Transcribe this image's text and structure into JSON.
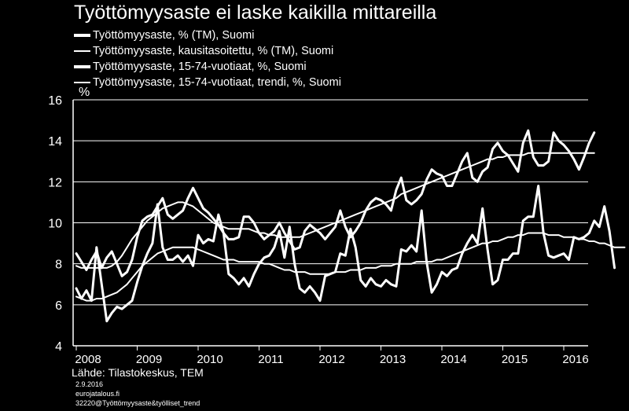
{
  "title": "Työttömyysaste ei laske kaikilla mittareilla",
  "legend": [
    "Työttömyysaste, % (TM), Suomi",
    "Työttömyysaste, kausitasoitettu, % (TM), Suomi",
    "Työttömyysaste, 15-74-vuotiaat, %, Suomi",
    "Työttömyysaste, 15-74-vuotiaat, trendi, %, Suomi"
  ],
  "footer": {
    "source": "Lähde: Tilastokeskus, TEM",
    "date": "2.9.2016",
    "site": "eurojatalous.fi",
    "code": "32220@Työttömyysaste&työlliset_trend"
  },
  "chart_data": {
    "type": "line",
    "xlabel": "",
    "ylabel": "%",
    "ylim": [
      4,
      16
    ],
    "yticks": [
      4,
      6,
      8,
      10,
      12,
      14,
      16
    ],
    "xtick_labels": [
      "2008",
      "2009",
      "2010",
      "2011",
      "2012",
      "2013",
      "2014",
      "2015",
      "2016"
    ],
    "grid": true,
    "legend_position": "top-left",
    "colors": {
      "background": "#000000",
      "lines": "#ffffff",
      "grid": "#ffffff"
    },
    "series": [
      {
        "name": "Työttömyysaste, % (TM), Suomi",
        "start": "2008-01",
        "line_width": 3,
        "values": [
          6.8,
          6.3,
          6.7,
          6.2,
          8.8,
          7.0,
          5.2,
          5.6,
          5.9,
          5.8,
          6.0,
          6.2,
          7.1,
          7.9,
          8.5,
          9.0,
          10.9,
          8.8,
          8.2,
          8.2,
          8.4,
          8.1,
          8.4,
          7.9,
          9.4,
          9.0,
          9.2,
          9.1,
          10.4,
          9.5,
          7.5,
          7.3,
          7.0,
          7.3,
          6.9,
          7.5,
          8.0,
          8.3,
          8.4,
          8.8,
          9.6,
          8.3,
          9.8,
          8.0,
          6.8,
          6.6,
          6.9,
          6.6,
          6.2,
          7.4,
          7.5,
          7.6,
          8.5,
          8.4,
          9.7,
          8.8,
          7.2,
          6.9,
          7.3,
          7.0,
          6.9,
          7.2,
          7.0,
          6.9,
          8.7,
          8.6,
          8.9,
          8.6,
          10.6,
          8.1,
          6.6,
          7.0,
          7.6,
          7.4,
          7.7,
          7.8,
          8.5,
          9.0,
          9.4,
          9.0,
          10.7,
          8.7,
          7.0,
          7.2,
          8.2,
          8.2,
          8.5,
          8.5,
          10.1,
          10.3,
          10.3,
          11.8,
          9.5,
          8.4,
          8.3,
          8.4,
          8.5,
          8.2,
          9.3,
          9.2,
          9.3,
          9.5,
          10.1,
          9.8,
          10.8,
          9.6,
          7.8
        ]
      },
      {
        "name": "Työttömyysaste, kausitasoitettu, % (TM), Suomi",
        "start": "2008-01",
        "line_width": 2,
        "values": [
          6.4,
          6.3,
          6.2,
          6.2,
          6.3,
          6.3,
          6.4,
          6.5,
          6.6,
          6.8,
          7.0,
          7.3,
          7.6,
          7.9,
          8.1,
          8.3,
          8.5,
          8.6,
          8.7,
          8.8,
          8.8,
          8.8,
          8.8,
          8.8,
          8.7,
          8.6,
          8.5,
          8.4,
          8.3,
          8.2,
          8.2,
          8.2,
          8.1,
          8.1,
          8.1,
          8.1,
          8.1,
          8.0,
          8.0,
          7.9,
          7.8,
          7.7,
          7.7,
          7.6,
          7.6,
          7.6,
          7.5,
          7.5,
          7.5,
          7.5,
          7.5,
          7.6,
          7.6,
          7.6,
          7.7,
          7.7,
          7.7,
          7.8,
          7.8,
          7.8,
          7.9,
          7.9,
          7.9,
          8.0,
          8.0,
          8.0,
          8.0,
          8.1,
          8.1,
          8.1,
          8.1,
          8.2,
          8.2,
          8.3,
          8.4,
          8.5,
          8.6,
          8.7,
          8.8,
          8.9,
          9.0,
          9.0,
          9.1,
          9.1,
          9.2,
          9.3,
          9.3,
          9.4,
          9.4,
          9.5,
          9.5,
          9.5,
          9.5,
          9.4,
          9.4,
          9.4,
          9.3,
          9.3,
          9.3,
          9.2,
          9.2,
          9.1,
          9.1,
          9.0,
          9.0,
          8.9,
          8.8,
          8.8,
          8.8
        ]
      },
      {
        "name": "Työttömyysaste, 15-74-vuotiaat, %, Suomi",
        "start": "2008-01",
        "line_width": 3,
        "values": [
          8.5,
          8.1,
          7.7,
          8.2,
          8.6,
          7.8,
          8.3,
          8.6,
          8.0,
          7.4,
          7.6,
          8.2,
          9.3,
          10.1,
          10.3,
          10.4,
          10.8,
          11.2,
          10.4,
          10.2,
          10.4,
          10.6,
          11.2,
          11.7,
          11.2,
          10.7,
          10.5,
          10.2,
          9.9,
          9.5,
          9.2,
          9.2,
          9.3,
          10.3,
          10.3,
          10.0,
          9.5,
          9.2,
          9.4,
          9.6,
          10.0,
          9.5,
          9.1,
          8.7,
          8.8,
          9.6,
          9.9,
          9.7,
          9.5,
          9.2,
          9.5,
          9.8,
          10.6,
          9.8,
          9.3,
          9.6,
          10.0,
          10.6,
          11.0,
          11.2,
          11.1,
          10.9,
          10.6,
          11.6,
          12.2,
          11.1,
          10.9,
          11.1,
          11.4,
          12.1,
          12.6,
          12.4,
          12.3,
          11.8,
          11.8,
          12.4,
          13.0,
          13.4,
          12.2,
          12.0,
          12.5,
          12.7,
          13.6,
          13.9,
          13.5,
          13.3,
          12.9,
          12.5,
          13.9,
          14.5,
          13.2,
          12.8,
          12.8,
          13.0,
          14.4,
          14.0,
          13.8,
          13.5,
          13.1,
          12.6,
          13.2,
          13.9,
          14.4
        ]
      },
      {
        "name": "Työttömyysaste, 15-74-vuotiaat, trendi, %, Suomi",
        "start": "2008-01",
        "line_width": 2,
        "values": [
          7.9,
          7.8,
          7.8,
          7.8,
          7.8,
          7.8,
          7.8,
          7.9,
          8.1,
          8.4,
          8.8,
          9.2,
          9.5,
          9.8,
          10.1,
          10.3,
          10.5,
          10.7,
          10.8,
          10.9,
          11.0,
          11.0,
          10.9,
          10.8,
          10.6,
          10.4,
          10.2,
          10.0,
          9.9,
          9.8,
          9.7,
          9.7,
          9.7,
          9.7,
          9.7,
          9.6,
          9.5,
          9.5,
          9.4,
          9.4,
          9.3,
          9.3,
          9.3,
          9.3,
          9.3,
          9.4,
          9.5,
          9.6,
          9.7,
          9.8,
          9.9,
          10.0,
          10.1,
          10.2,
          10.3,
          10.4,
          10.5,
          10.6,
          10.7,
          10.8,
          10.9,
          11.0,
          11.1,
          11.2,
          11.4,
          11.5,
          11.6,
          11.7,
          11.8,
          11.9,
          12.0,
          12.1,
          12.2,
          12.3,
          12.4,
          12.5,
          12.6,
          12.7,
          12.8,
          12.9,
          13.0,
          13.1,
          13.1,
          13.2,
          13.2,
          13.3,
          13.3,
          13.3,
          13.3,
          13.4,
          13.4,
          13.4,
          13.4,
          13.4,
          13.4,
          13.4,
          13.4,
          13.4,
          13.4,
          13.4,
          13.4,
          13.4,
          13.4
        ]
      }
    ]
  }
}
